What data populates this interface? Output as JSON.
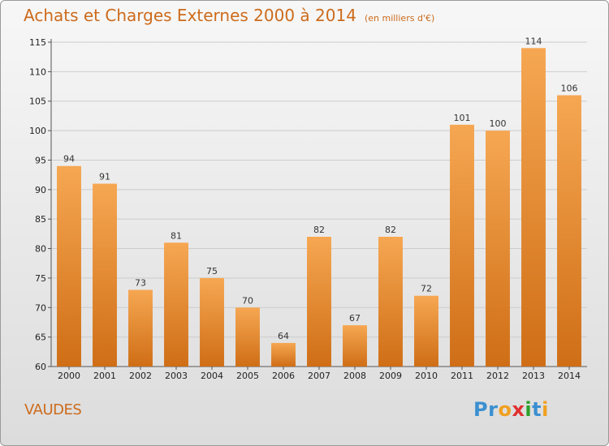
{
  "header": {
    "title": "Achats et Charges Externes 2000 à 2014",
    "unit": "(en milliers d'€)"
  },
  "footer": {
    "commune": "VAUDES",
    "brand_letters": [
      {
        "char": "P",
        "color": "#3a8fd0"
      },
      {
        "char": "r",
        "color": "#3a8fd0"
      },
      {
        "char": "o",
        "color": "#f0a020"
      },
      {
        "char": "x",
        "color": "#e03030"
      },
      {
        "char": "i",
        "color": "#2ca02c"
      },
      {
        "char": "t",
        "color": "#3a8fd0"
      },
      {
        "char": "i",
        "color": "#f0a020"
      }
    ]
  },
  "colors": {
    "bar_light": "#f6a752",
    "bar_dark": "#cf6e16",
    "title": "#cc6b1c",
    "grid": "#cccccc"
  },
  "chart_data": {
    "type": "bar",
    "title": "Achats et Charges Externes 2000 à 2014",
    "subtitle": "(en milliers d'€)",
    "categories": [
      "2000",
      "2001",
      "2002",
      "2003",
      "2004",
      "2005",
      "2006",
      "2007",
      "2008",
      "2009",
      "2010",
      "2011",
      "2012",
      "2013",
      "2014"
    ],
    "values": [
      94,
      91,
      73,
      81,
      75,
      70,
      64,
      82,
      67,
      82,
      72,
      101,
      100,
      114,
      106
    ],
    "ylim": [
      60,
      115
    ],
    "yticks": [
      60,
      65,
      70,
      75,
      80,
      85,
      90,
      95,
      100,
      105,
      110,
      115
    ],
    "grid": true,
    "legend": "none"
  }
}
